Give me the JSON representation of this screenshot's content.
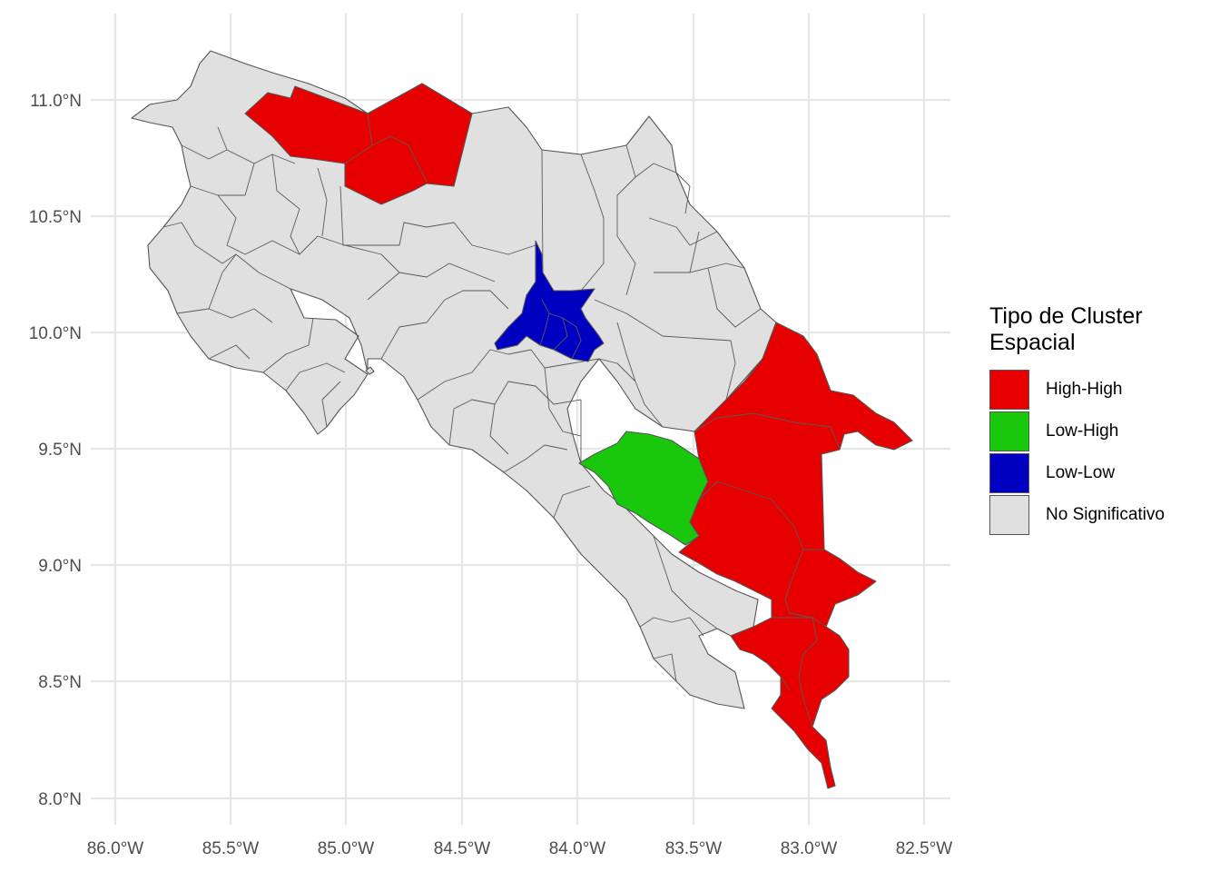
{
  "map": {
    "x_ticks": [
      "86.0°W",
      "85.5°W",
      "85.0°W",
      "84.5°W",
      "84.0°W",
      "83.5°W",
      "83.0°W",
      "82.5°W"
    ],
    "y_ticks": [
      "11.0°N",
      "10.5°N",
      "10.0°N",
      "9.5°N",
      "9.0°N",
      "8.5°N",
      "8.0°N"
    ],
    "colors": {
      "high_high": "#e60000",
      "low_high": "#19c80c",
      "low_low": "#0000c0",
      "no_significativo": "#e0e0e0"
    }
  },
  "legend": {
    "title_line1": "Tipo de Cluster",
    "title_line2": "Espacial",
    "items": [
      {
        "label": "High-High",
        "color": "#e60000"
      },
      {
        "label": "Low-High",
        "color": "#19c80c"
      },
      {
        "label": "Low-Low",
        "color": "#0000c0"
      },
      {
        "label": "No Significativo",
        "color": "#e0e0e0"
      }
    ]
  }
}
